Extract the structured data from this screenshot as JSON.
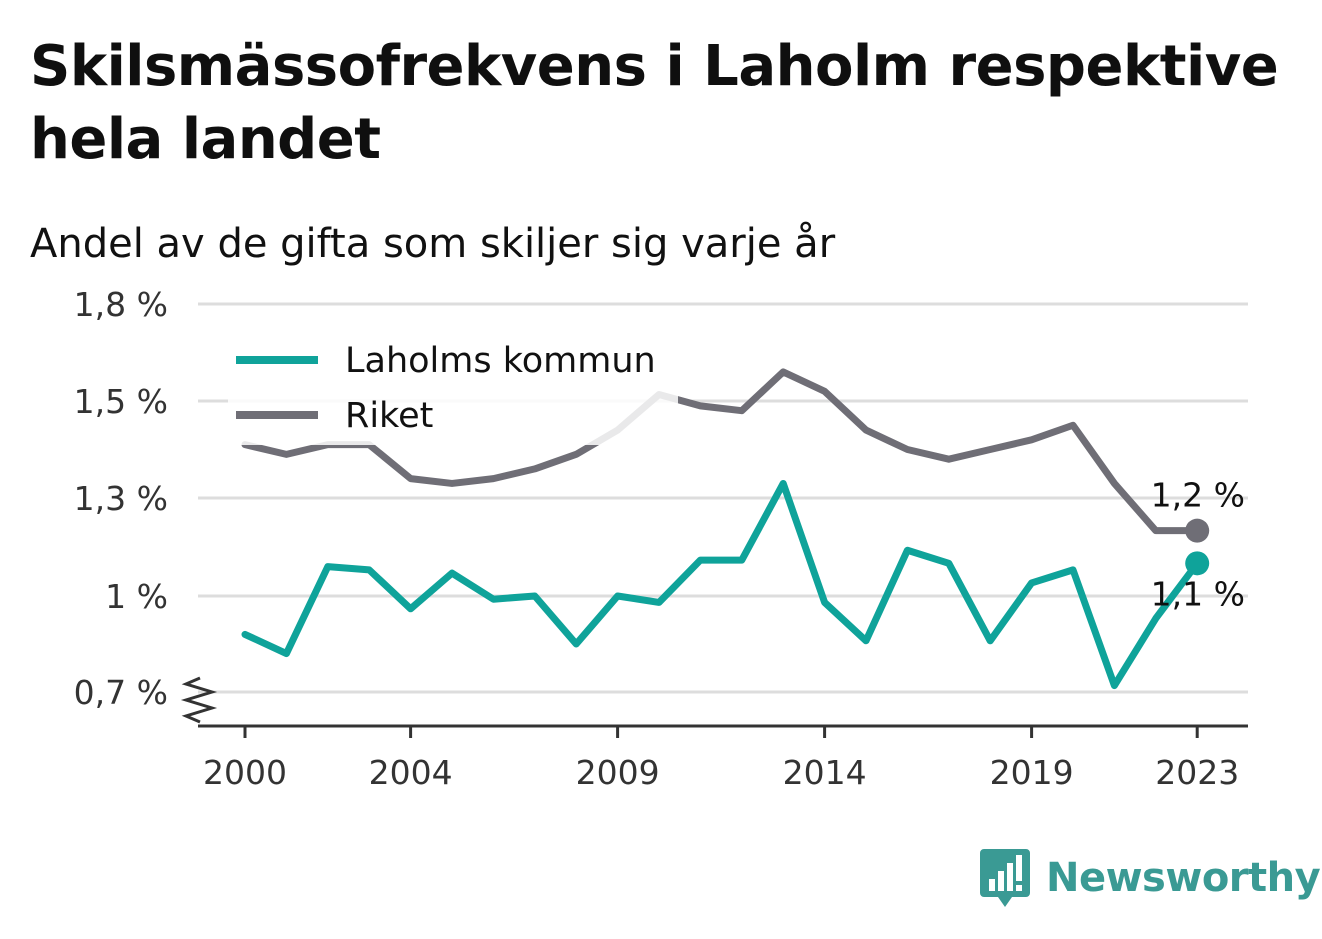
{
  "title": "Skilsmässofrekvens i Laholm respektive hela landet",
  "subtitle": "Andel av de gifta som skiljer sig varje år",
  "brand": {
    "name": "Newsworthy"
  },
  "colors": {
    "laholm": "#0fa39a",
    "riket": "#6f6e76",
    "grid": "#dddddd",
    "axis": "#333333",
    "brand": "#3a9a94"
  },
  "chart_data": {
    "type": "line",
    "title": "Skilsmässofrekvens i Laholm respektive hela landet",
    "subtitle": "Andel av de gifta som skiljer sig varje år",
    "xlabel": "",
    "ylabel": "",
    "x": [
      2000,
      2001,
      2002,
      2003,
      2004,
      2005,
      2006,
      2007,
      2008,
      2009,
      2010,
      2011,
      2012,
      2013,
      2014,
      2015,
      2016,
      2017,
      2018,
      2019,
      2020,
      2021,
      2022,
      2023
    ],
    "x_ticks": [
      2000,
      2004,
      2009,
      2014,
      2019,
      2023
    ],
    "x_tick_labels": [
      "2000",
      "2004",
      "2009",
      "2014",
      "2019",
      "2023"
    ],
    "ylim": [
      0.7,
      1.8
    ],
    "y_ticks": [
      0.7,
      1.0,
      1.3,
      1.5,
      1.8
    ],
    "y_tick_labels": [
      "0,7 %",
      "1 %",
      "1,3 %",
      "1,5 %",
      "1,8 %"
    ],
    "y_axis_break": true,
    "grid": true,
    "legend_position": "top-left",
    "series": [
      {
        "name": "Laholms kommun",
        "color": "#0fa39a",
        "values": [
          0.88,
          0.82,
          1.09,
          1.08,
          0.96,
          1.07,
          0.99,
          1.0,
          0.85,
          1.0,
          0.98,
          1.11,
          1.11,
          1.33,
          0.98,
          0.86,
          1.14,
          1.1,
          0.86,
          1.04,
          1.08,
          0.72,
          0.93,
          1.1
        ],
        "end_label": "1,1 %"
      },
      {
        "name": "Riket",
        "color": "#6f6e76",
        "values": [
          1.41,
          1.39,
          1.41,
          1.41,
          1.34,
          1.33,
          1.34,
          1.36,
          1.39,
          1.44,
          1.52,
          1.49,
          1.48,
          1.59,
          1.53,
          1.44,
          1.4,
          1.38,
          1.4,
          1.42,
          1.45,
          1.33,
          1.2,
          1.2
        ],
        "end_label": "1,2 %"
      }
    ]
  }
}
